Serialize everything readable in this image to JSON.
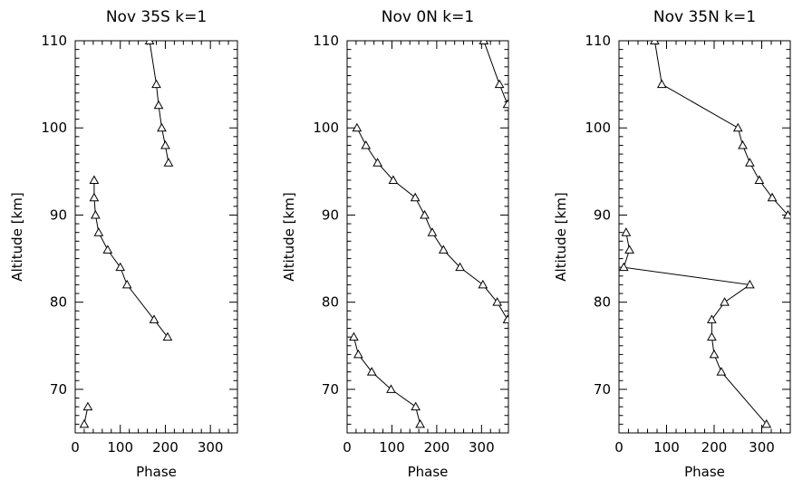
{
  "chart_data": [
    {
      "type": "line",
      "title": "Nov 35S  k=1",
      "xlabel": "Phase",
      "ylabel": "Altitude [km]",
      "xlim": [
        0,
        360
      ],
      "ylim": [
        65,
        110
      ],
      "xticks": [
        "0",
        "100",
        "200",
        "300"
      ],
      "yticks": [
        "70",
        "80",
        "90",
        "100",
        "110"
      ],
      "marker": "triangle",
      "segments": [
        [
          [
            165,
            110
          ],
          [
            180,
            105
          ],
          [
            185,
            102.6
          ],
          [
            192,
            100
          ],
          [
            200,
            98
          ],
          [
            207,
            96
          ]
        ],
        [
          [
            42,
            94
          ],
          [
            42,
            92
          ],
          [
            45,
            90
          ],
          [
            52,
            88
          ],
          [
            72,
            86
          ],
          [
            100,
            84
          ],
          [
            115,
            82
          ],
          [
            175,
            78
          ],
          [
            205,
            76
          ]
        ],
        [
          [
            28,
            68
          ],
          [
            20,
            66
          ]
        ]
      ]
    },
    {
      "type": "line",
      "title": "Nov   0N  k=1",
      "xlabel": "Phase",
      "ylabel": "Altitude [km]",
      "xlim": [
        0,
        360
      ],
      "ylim": [
        65,
        110
      ],
      "xticks": [
        "0",
        "100",
        "200",
        "300"
      ],
      "yticks": [
        "70",
        "80",
        "90",
        "100",
        "110"
      ],
      "marker": "triangle",
      "segments": [
        [
          [
            305,
            110
          ],
          [
            340,
            105
          ],
          [
            358,
            102.7
          ]
        ],
        [
          [
            22,
            100
          ],
          [
            42,
            98
          ],
          [
            68,
            96
          ],
          [
            103,
            94
          ],
          [
            152,
            92
          ],
          [
            173,
            90
          ],
          [
            190,
            88
          ],
          [
            215,
            86
          ],
          [
            252,
            84
          ],
          [
            303,
            82
          ],
          [
            335,
            80
          ],
          [
            358,
            78
          ]
        ],
        [
          [
            15,
            76
          ],
          [
            25,
            74
          ],
          [
            55,
            72
          ],
          [
            98,
            70
          ],
          [
            153,
            68
          ],
          [
            163,
            66
          ]
        ]
      ]
    },
    {
      "type": "line",
      "title": "Nov 35N  k=1",
      "xlabel": "Phase",
      "ylabel": "Altitude [km]",
      "xlim": [
        0,
        360
      ],
      "ylim": [
        65,
        110
      ],
      "xticks": [
        "0",
        "100",
        "200",
        "300"
      ],
      "yticks": [
        "70",
        "80",
        "90",
        "100",
        "110"
      ],
      "marker": "triangle",
      "segments": [
        [
          [
            75,
            110
          ],
          [
            90,
            105
          ],
          [
            250,
            100
          ],
          [
            260,
            98
          ],
          [
            275,
            96
          ],
          [
            295,
            94
          ],
          [
            322,
            92
          ],
          [
            355,
            90
          ]
        ],
        [
          [
            15,
            88
          ],
          [
            22,
            86
          ],
          [
            10,
            84
          ],
          [
            275,
            82
          ],
          [
            222,
            80
          ],
          [
            195,
            78
          ],
          [
            195,
            76
          ],
          [
            200,
            74
          ],
          [
            215,
            72
          ],
          [
            310,
            66
          ]
        ]
      ]
    }
  ]
}
